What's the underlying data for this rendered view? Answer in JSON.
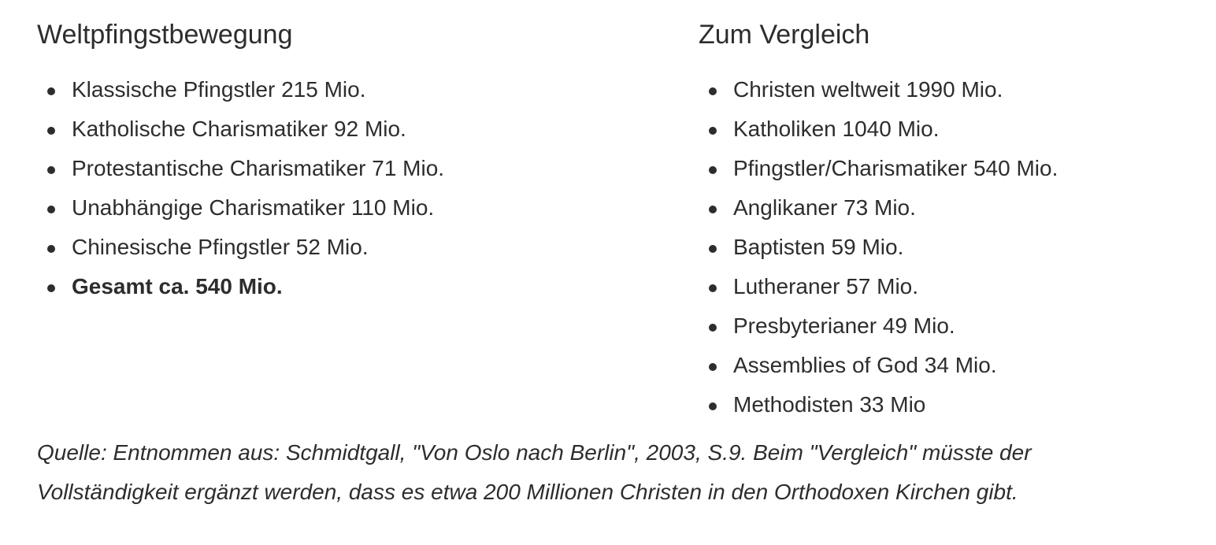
{
  "colors": {
    "text": "#2d2d2d",
    "background": "#ffffff"
  },
  "left_column": {
    "heading": "Weltpfingstbewegung",
    "items": [
      {
        "text": "Klassische Pfingstler 215 Mio.",
        "bold": false
      },
      {
        "text": "Katholische Charismatiker 92 Mio.",
        "bold": false
      },
      {
        "text": "Protestantische Charismatiker 71 Mio.",
        "bold": false
      },
      {
        "text": "Unabhängige Charismatiker 110 Mio.",
        "bold": false
      },
      {
        "text": "Chinesische Pfingstler 52 Mio.",
        "bold": false
      },
      {
        "text": "Gesamt ca. 540 Mio.",
        "bold": true
      }
    ]
  },
  "right_column": {
    "heading": "Zum Vergleich",
    "items": [
      {
        "text": "Christen weltweit 1990 Mio.",
        "bold": false
      },
      {
        "text": "Katholiken 1040 Mio.",
        "bold": false
      },
      {
        "text": "Pfingstler/Charismatiker 540 Mio.",
        "bold": false
      },
      {
        "text": "Anglikaner 73 Mio.",
        "bold": false
      },
      {
        "text": "Baptisten 59 Mio.",
        "bold": false
      },
      {
        "text": "Lutheraner 57 Mio.",
        "bold": false
      },
      {
        "text": "Presbyterianer 49 Mio.",
        "bold": false
      },
      {
        "text": "Assemblies of God 34 Mio.",
        "bold": false
      },
      {
        "text": "Methodisten 33 Mio",
        "bold": false
      }
    ]
  },
  "source_note": {
    "lines": [
      "Quelle: Entnommen aus: Schmidtgall, \"Von Oslo nach Berlin\", 2003, S.9. Beim \"Vergleich\" müsste der",
      "Vollständigkeit ergänzt werden, dass es etwa 200 Millionen Christen in den Orthodoxen Kirchen gibt."
    ],
    "full_text": "Quelle: Entnommen aus: Schmidtgall, \"Von Oslo nach Berlin\", 2003, S.9. Beim \"Vergleich\" müsste der Vollständigkeit ergänzt werden, dass es etwa 200 Millionen Christen in den Orthodoxen Kirchen gibt."
  }
}
